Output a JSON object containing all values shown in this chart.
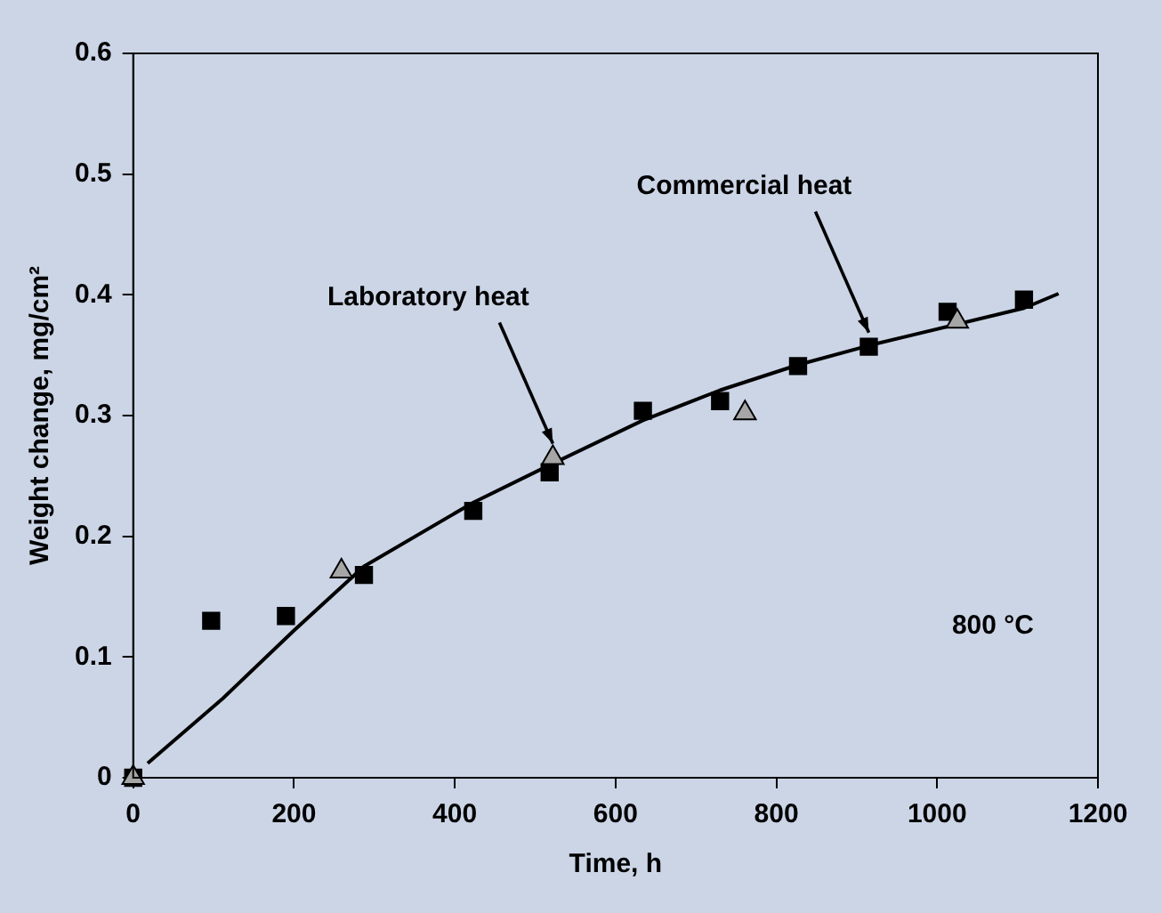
{
  "chart_data": {
    "type": "scatter",
    "xlabel": "Time, h",
    "ylabel": "Weight change, mg/cm²",
    "xlim": [
      0,
      1200
    ],
    "xticks": [
      0,
      200,
      400,
      600,
      800,
      1000,
      1200
    ],
    "ylim": [
      0,
      0.6
    ],
    "yticks": [
      {
        "value": 0,
        "label": "0"
      },
      0.1,
      0.2,
      0.3,
      0.4,
      0.5,
      0.6
    ],
    "grid": false,
    "legend": false,
    "series": [
      {
        "type": "line",
        "color": "#000000",
        "marker": "none",
        "x": [
          18,
          112,
          200,
          287,
          423,
          518,
          634,
          730,
          827,
          915,
          1108,
          1151
        ],
        "values": [
          0.012,
          0.066,
          0.122,
          0.175,
          0.228,
          0.259,
          0.296,
          0.321,
          0.342,
          0.358,
          0.389,
          0.401
        ]
      },
      {
        "color": "#000000",
        "marker": "square",
        "x": [
          0,
          97,
          190,
          287,
          423,
          518,
          634,
          730,
          827,
          915,
          1013,
          1108
        ],
        "values": [
          0,
          0.13,
          0.134,
          0.168,
          0.221,
          0.253,
          0.304,
          0.312,
          0.341,
          0.357,
          0.386,
          0.396
        ]
      },
      {
        "color": "#a6a6a6",
        "marker": "triangle",
        "x": [
          0,
          259,
          522,
          761,
          1025
        ],
        "values": [
          0,
          0.171,
          0.265,
          0.302,
          0.378
        ]
      }
    ],
    "annotations": [
      {
        "text": "Laboratory heat",
        "x": 522,
        "y": 0.265
      },
      {
        "text": "Commercial heat",
        "x": 915,
        "y": 0.357
      },
      "800 °C"
    ]
  }
}
